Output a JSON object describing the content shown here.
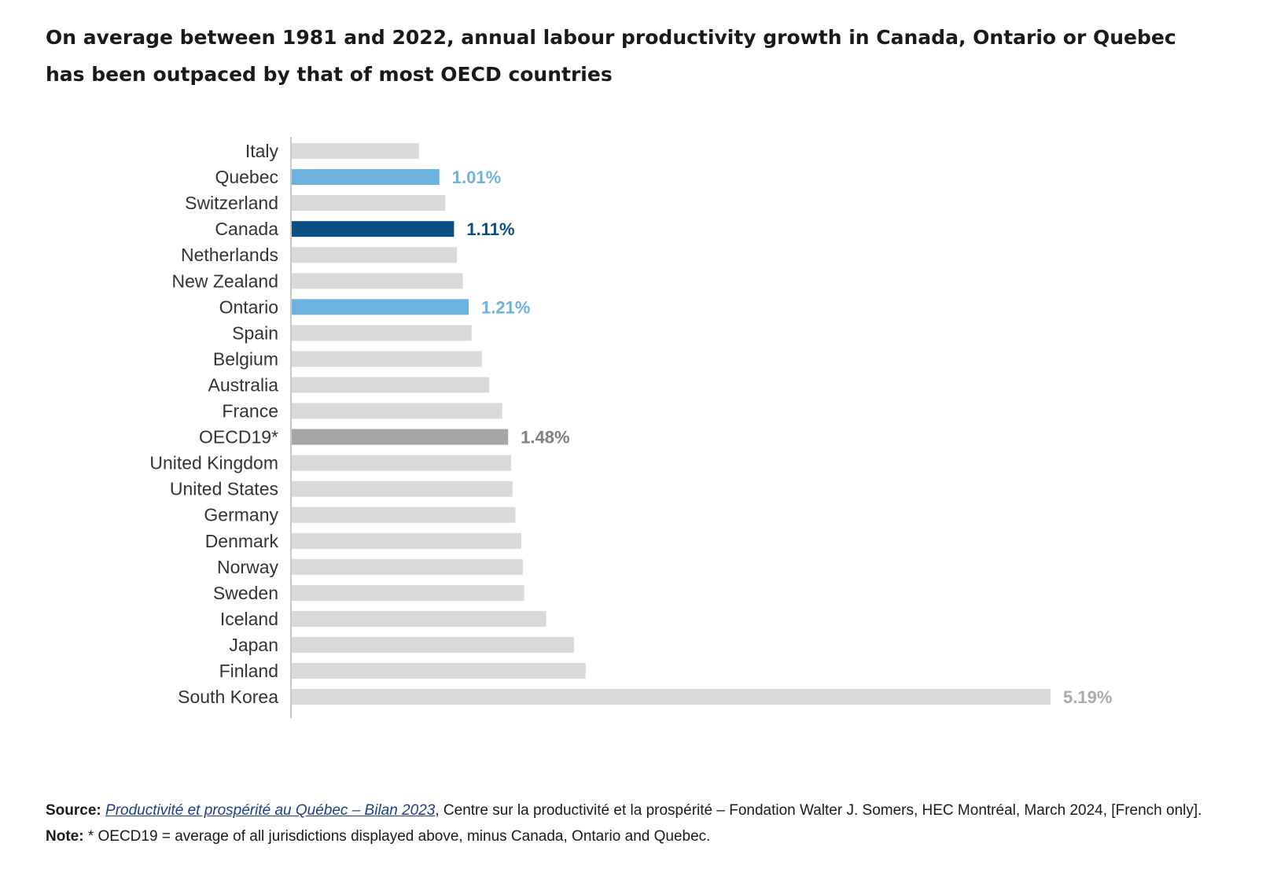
{
  "title": "On average between 1981 and 2022, annual labour productivity growth in Canada, Ontario or Quebec has been outpaced by that of most OECD countries",
  "colors": {
    "default_bar": "#d9d9d9",
    "provinces": "#6bb3de",
    "canada": "#0a4f82",
    "oecd": "#a6a6a6",
    "axis": "#c8c8c8"
  },
  "chart_data": {
    "type": "bar",
    "orientation": "horizontal",
    "title": "On average between 1981 and 2022, annual labour productivity growth in Canada, Ontario or Quebec has been outpaced by that of most OECD countries",
    "xlabel": "",
    "ylabel": "",
    "xlim": [
      0,
      5.19
    ],
    "unit": "%",
    "categories": [
      "Italy",
      "Quebec",
      "Switzerland",
      "Canada",
      "Netherlands",
      "New Zealand",
      "Ontario",
      "Spain",
      "Belgium",
      "Australia",
      "France",
      "OECD19*",
      "United Kingdom",
      "United States",
      "Germany",
      "Denmark",
      "Norway",
      "Sweden",
      "Iceland",
      "Japan",
      "Finland",
      "South Korea"
    ],
    "values": [
      0.87,
      1.01,
      1.05,
      1.11,
      1.13,
      1.17,
      1.21,
      1.23,
      1.3,
      1.35,
      1.44,
      1.48,
      1.5,
      1.51,
      1.53,
      1.57,
      1.58,
      1.59,
      1.74,
      1.93,
      2.01,
      5.19
    ],
    "highlight": [
      "default",
      "province",
      "default",
      "canada",
      "default",
      "default",
      "province",
      "default",
      "default",
      "default",
      "default",
      "oecd",
      "default",
      "default",
      "default",
      "default",
      "default",
      "default",
      "default",
      "default",
      "default",
      "max"
    ],
    "data_labels": [
      "",
      "1.01%",
      "",
      "1.11%",
      "",
      "",
      "1.21%",
      "",
      "",
      "",
      "",
      "1.48%",
      "",
      "",
      "",
      "",
      "",
      "",
      "",
      "",
      "",
      "5.19%"
    ]
  },
  "footer": {
    "source_label": "Source:",
    "source_link": "Productivité et prospérité au Québec – Bilan 2023",
    "source_rest": ", Centre sur la productivité et la prospérité – Fondation Walter J. Somers, HEC Montréal, March 2024, [French only].",
    "note_label": "Note:",
    "note_text": " * OECD19 = average of all jurisdictions displayed above, minus Canada, Ontario and Quebec."
  }
}
